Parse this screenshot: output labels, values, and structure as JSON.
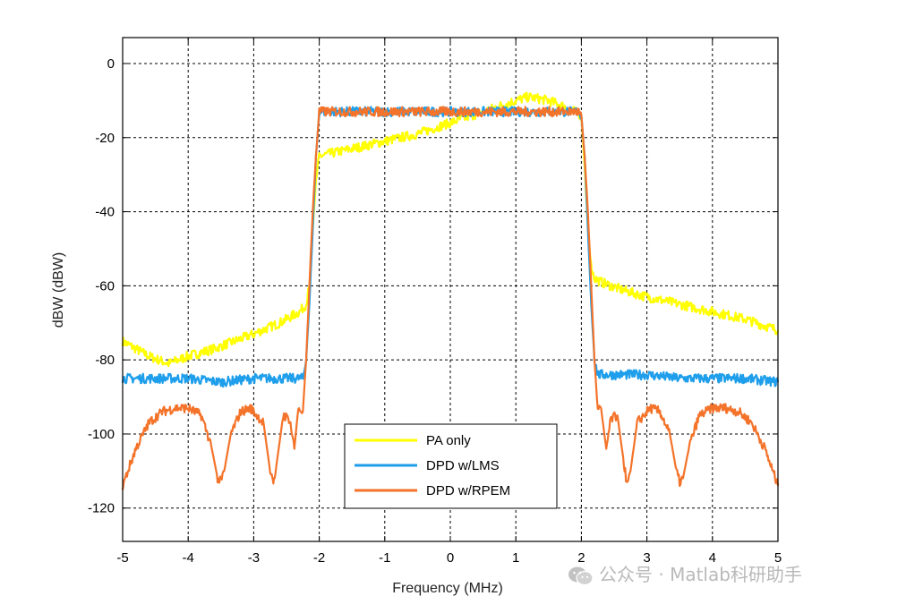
{
  "chart_data": {
    "type": "line",
    "title": "",
    "xlabel": "Frequency (MHz)",
    "ylabel": "dBW (dBW)",
    "xlim": [
      -5,
      5
    ],
    "ylim": [
      -129,
      7
    ],
    "grid": true,
    "x_ticks": [
      -5,
      -4,
      -3,
      -2,
      -1,
      0,
      1,
      2,
      3,
      4,
      5
    ],
    "y_ticks": [
      0,
      -20,
      -40,
      -60,
      -80,
      -100,
      -120
    ],
    "x_tick_labels": [
      "-5",
      "-4",
      "-3",
      "-2",
      "-1",
      "0",
      "1",
      "2",
      "3",
      "4",
      "5"
    ],
    "y_tick_labels": [
      "0",
      "-20",
      "-40",
      "-60",
      "-80",
      "-100",
      "-120"
    ],
    "legend_position": "bottom-center",
    "series": [
      {
        "name": "PA only",
        "color": "#FFFF00",
        "x": [
          -5,
          -4.6,
          -4.3,
          -4.0,
          -3.6,
          -3.0,
          -2.6,
          -2.3,
          -2.2,
          -2.15,
          -2.1,
          -2.05,
          -2.0,
          -1.5,
          -1.0,
          -0.5,
          0,
          0.5,
          1.0,
          1.2,
          1.5,
          1.8,
          2.0,
          2.05,
          2.1,
          2.15,
          2.2,
          2.3,
          2.6,
          3.0,
          3.5,
          4.0,
          4.5,
          5.0
        ],
        "y": [
          -75,
          -79,
          -81,
          -79,
          -77,
          -73,
          -70,
          -67,
          -65,
          -60,
          -45,
          -32,
          -25,
          -23,
          -21,
          -19,
          -16,
          -13,
          -10,
          -9,
          -10,
          -12,
          -14,
          -28,
          -45,
          -55,
          -58,
          -59,
          -61,
          -63,
          -65,
          -67,
          -69,
          -72
        ]
      },
      {
        "name": "DPD w/LMS",
        "color": "#1E9EEB",
        "x": [
          -5,
          -4.5,
          -4.0,
          -3.5,
          -3.0,
          -2.5,
          -2.25,
          -2.2,
          -2.15,
          -2.1,
          -2.05,
          -2.0,
          -1.5,
          -1.0,
          -0.5,
          0,
          0.5,
          1.0,
          1.5,
          1.95,
          2.0,
          2.05,
          2.1,
          2.15,
          2.2,
          2.25,
          2.5,
          3.0,
          3.5,
          4.0,
          4.5,
          5.0
        ],
        "y": [
          -85,
          -85,
          -85,
          -86,
          -85,
          -85,
          -85,
          -80,
          -65,
          -45,
          -25,
          -13,
          -13,
          -13,
          -13,
          -13,
          -13,
          -13,
          -13,
          -13,
          -14,
          -25,
          -45,
          -65,
          -80,
          -84,
          -84,
          -84,
          -85,
          -85,
          -85,
          -86
        ]
      },
      {
        "name": "DPD w/RPEM",
        "color": "#F4732A",
        "x": [
          -5,
          -4.8,
          -4.6,
          -4.4,
          -4.2,
          -4.0,
          -3.8,
          -3.65,
          -3.55,
          -3.5,
          -3.45,
          -3.35,
          -3.2,
          -3.05,
          -2.85,
          -2.75,
          -2.7,
          -2.65,
          -2.55,
          -2.45,
          -2.38,
          -2.32,
          -2.25,
          -2.2,
          -2.15,
          -2.1,
          -2.05,
          -2.0,
          -1.5,
          -1.0,
          -0.5,
          0,
          0.5,
          1.0,
          1.5,
          1.95,
          2.0,
          2.05,
          2.1,
          2.15,
          2.2,
          2.25,
          2.3,
          2.38,
          2.45,
          2.55,
          2.65,
          2.7,
          2.75,
          2.85,
          3.05,
          3.2,
          3.35,
          3.45,
          3.5,
          3.55,
          3.65,
          3.8,
          4.0,
          4.2,
          4.4,
          4.6,
          4.8,
          5.0
        ],
        "y": [
          -114,
          -104,
          -97,
          -94,
          -93,
          -93,
          -95,
          -103,
          -112,
          -113,
          -110,
          -100,
          -94,
          -93,
          -97,
          -110,
          -114,
          -108,
          -95,
          -96,
          -104,
          -93,
          -94,
          -80,
          -60,
          -40,
          -25,
          -13,
          -13,
          -13,
          -13,
          -13,
          -13,
          -13,
          -13,
          -13,
          -14,
          -25,
          -40,
          -60,
          -80,
          -94,
          -93,
          -104,
          -96,
          -95,
          -108,
          -114,
          -110,
          -97,
          -93,
          -94,
          -100,
          -110,
          -113,
          -112,
          -103,
          -95,
          -93,
          -93,
          -94,
          -97,
          -104,
          -114
        ]
      }
    ]
  },
  "watermark": {
    "text": "公众号 · Matlab科研助手",
    "icon": "wechat-icon"
  }
}
